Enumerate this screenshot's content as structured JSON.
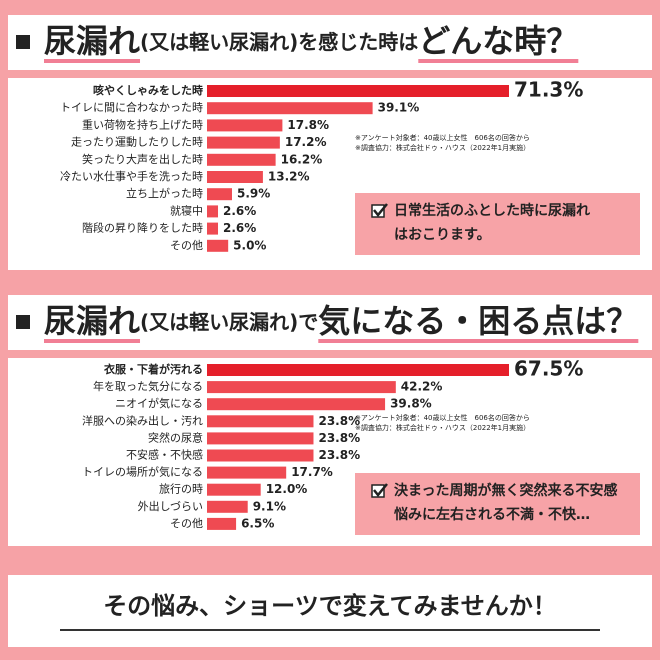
{
  "chart_data": [
    {
      "type": "bar",
      "orientation": "horizontal",
      "title": [
        "尿漏れ",
        "(又は軽い尿漏れ)を感じた時は",
        "どんな時？"
      ],
      "categories": [
        "咳やくしゃみをした時",
        "トイレに間に合わなかった時",
        "重い荷物を持ち上げた時",
        "走ったり運動したりした時",
        "笑ったり大声を出した時",
        "冷たい水仕事や手を洗った時",
        "立ち上がった時",
        "就寝中",
        "階段の昇り降りをした時",
        "その他"
      ],
      "values": [
        71.3,
        39.1,
        17.8,
        17.2,
        16.2,
        13.2,
        5.9,
        2.6,
        2.6,
        5.0
      ],
      "value_labels": [
        "71.3%",
        "39.1%",
        "17.8%",
        "17.2%",
        "16.2%",
        "13.2%",
        "5.9%",
        "2.6%",
        "2.6%",
        "5.0%"
      ],
      "color": "#ef4a52",
      "highlight_color": "#e51f2a",
      "notes": [
        "※アンケート対象者：40歳以上女性　606名の回答から",
        "※調査協力：株式会社ドゥ・ハウス（2022年1月実施）"
      ],
      "callout": [
        "日常生活のふとした時に尿漏れ",
        "はおこります。"
      ]
    },
    {
      "type": "bar",
      "orientation": "horizontal",
      "title": [
        "尿漏れ",
        "(又は軽い尿漏れ)で",
        "気になる・困る点は？"
      ],
      "categories": [
        "衣服・下着が汚れる",
        "年を取った気分になる",
        "ニオイが気になる",
        "洋服への染み出し・汚れ",
        "突然の尿意",
        "不安感・不快感",
        "トイレの場所が気になる",
        "旅行の時",
        "外出しづらい",
        "その他"
      ],
      "values": [
        67.5,
        42.2,
        39.8,
        23.8,
        23.8,
        23.8,
        17.7,
        12.0,
        9.1,
        6.5
      ],
      "value_labels": [
        "67.5%",
        "42.2%",
        "39.8%",
        "23.8%",
        "23.8%",
        "23.8%",
        "17.7%",
        "12.0%",
        "9.1%",
        "6.5%"
      ],
      "color": "#ef4a52",
      "highlight_color": "#e51f2a",
      "notes": [
        "※アンケート対象者：40歳以上女性　606名の回答から",
        "※調査協力：株式会社ドゥ・ハウス（2022年1月実施）"
      ],
      "callout": [
        "決まった周期が無く突然来る不安感",
        "悩みに左右される不満・不快…"
      ]
    }
  ],
  "footer": "その悩み、ショーツで変えてみませんか！"
}
